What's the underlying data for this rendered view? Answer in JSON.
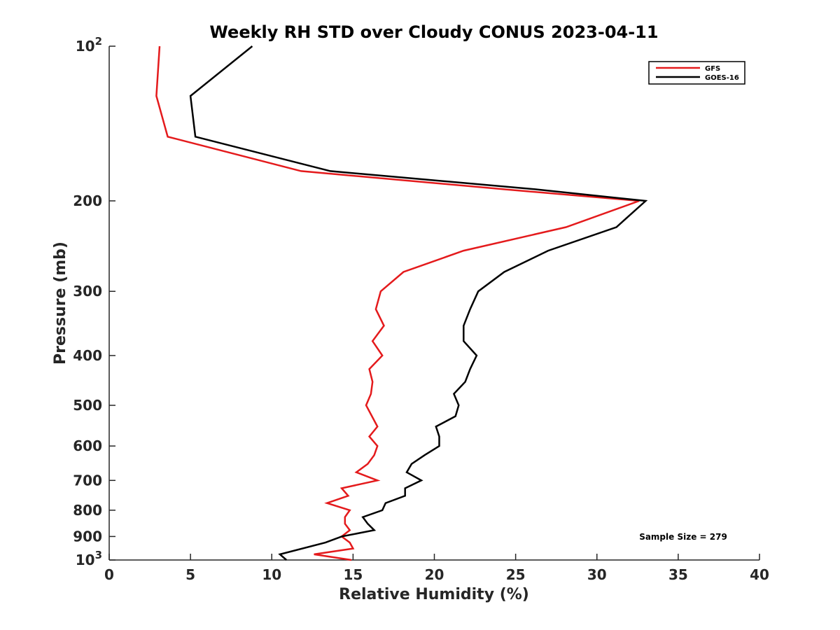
{
  "chart_data": {
    "type": "line",
    "title": "Weekly RH STD over Cloudy CONUS 2023-04-11",
    "xlabel": "Relative Humidity (%)",
    "ylabel": "Pressure (mb)",
    "xlim": [
      0,
      40
    ],
    "ylim": [
      100,
      1000
    ],
    "y_scale": "log",
    "y_reversed": true,
    "grid": false,
    "legend_position": "top-right",
    "x_ticks": [
      "0",
      "5",
      "10",
      "15",
      "20",
      "25",
      "30",
      "35",
      "40"
    ],
    "y_ticks": [
      {
        "value": 100,
        "base": "10",
        "exp": "2"
      },
      {
        "value": 200,
        "label": "200"
      },
      {
        "value": 300,
        "label": "300"
      },
      {
        "value": 400,
        "label": "400"
      },
      {
        "value": 500,
        "label": "500"
      },
      {
        "value": 600,
        "label": "600"
      },
      {
        "value": 700,
        "label": "700"
      },
      {
        "value": 800,
        "label": "800"
      },
      {
        "value": 900,
        "label": "900"
      },
      {
        "value": 1000,
        "base": "10",
        "exp": "3"
      }
    ],
    "annotation": "Sample Size = 279",
    "series": [
      {
        "name": "GFS",
        "color": "#e41a1c",
        "points": [
          [
            3.1,
            100
          ],
          [
            2.9,
            125
          ],
          [
            3.6,
            150
          ],
          [
            11.8,
            175
          ],
          [
            24.4,
            190
          ],
          [
            32.6,
            200
          ],
          [
            28.1,
            225
          ],
          [
            21.8,
            250
          ],
          [
            18.1,
            275
          ],
          [
            16.7,
            300
          ],
          [
            16.4,
            325
          ],
          [
            16.9,
            350
          ],
          [
            16.2,
            375
          ],
          [
            16.8,
            400
          ],
          [
            16.0,
            425
          ],
          [
            16.2,
            450
          ],
          [
            16.1,
            475
          ],
          [
            15.8,
            500
          ],
          [
            16.5,
            550
          ],
          [
            16.0,
            575
          ],
          [
            16.5,
            600
          ],
          [
            16.3,
            625
          ],
          [
            15.9,
            650
          ],
          [
            15.2,
            675
          ],
          [
            16.5,
            700
          ],
          [
            14.3,
            725
          ],
          [
            14.7,
            750
          ],
          [
            13.4,
            775
          ],
          [
            14.8,
            800
          ],
          [
            14.5,
            825
          ],
          [
            14.5,
            850
          ],
          [
            14.8,
            875
          ],
          [
            14.3,
            900
          ],
          [
            14.8,
            925
          ],
          [
            15.0,
            950
          ],
          [
            12.6,
            975
          ],
          [
            14.9,
            1000
          ]
        ]
      },
      {
        "name": "GOES-16",
        "color": "#000000",
        "points": [
          [
            8.8,
            100
          ],
          [
            5.0,
            125
          ],
          [
            5.3,
            150
          ],
          [
            13.6,
            175
          ],
          [
            26.3,
            190
          ],
          [
            33.0,
            200
          ],
          [
            31.2,
            225
          ],
          [
            27.0,
            250
          ],
          [
            24.3,
            275
          ],
          [
            22.7,
            300
          ],
          [
            22.2,
            325
          ],
          [
            21.8,
            350
          ],
          [
            21.8,
            375
          ],
          [
            22.6,
            400
          ],
          [
            22.2,
            425
          ],
          [
            21.9,
            450
          ],
          [
            21.2,
            475
          ],
          [
            21.5,
            500
          ],
          [
            21.3,
            525
          ],
          [
            20.1,
            550
          ],
          [
            20.3,
            575
          ],
          [
            20.3,
            600
          ],
          [
            19.4,
            625
          ],
          [
            18.6,
            650
          ],
          [
            18.3,
            675
          ],
          [
            19.2,
            700
          ],
          [
            18.2,
            725
          ],
          [
            18.2,
            750
          ],
          [
            17.0,
            775
          ],
          [
            16.8,
            800
          ],
          [
            15.6,
            825
          ],
          [
            15.9,
            850
          ],
          [
            16.3,
            875
          ],
          [
            14.3,
            900
          ],
          [
            13.3,
            925
          ],
          [
            10.5,
            975
          ],
          [
            10.9,
            1000
          ]
        ]
      }
    ]
  }
}
